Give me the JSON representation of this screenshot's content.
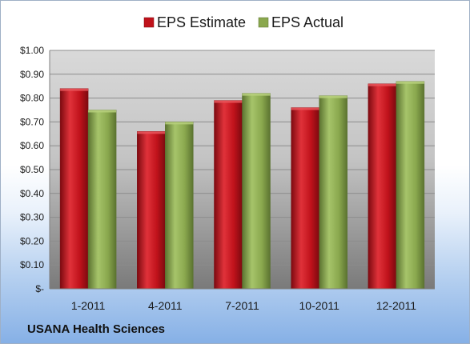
{
  "chart_data": {
    "type": "bar",
    "categories": [
      "1-2011",
      "4-2011",
      "7-2011",
      "10-2011",
      "12-2011"
    ],
    "series": [
      {
        "name": "EPS Estimate",
        "values": [
          0.84,
          0.66,
          0.79,
          0.76,
          0.86
        ],
        "color": "#c0121b"
      },
      {
        "name": "EPS Actual",
        "values": [
          0.75,
          0.7,
          0.82,
          0.81,
          0.87
        ],
        "color": "#8aa84e"
      }
    ],
    "yticks": [
      "$-",
      "$0.10",
      "$0.20",
      "$0.30",
      "$0.40",
      "$0.50",
      "$0.60",
      "$0.70",
      "$0.80",
      "$0.90",
      "$1.00"
    ],
    "ylim": [
      0,
      1.0
    ],
    "grid": true,
    "legend_position": "top",
    "caption": "USANA Health Sciences"
  }
}
